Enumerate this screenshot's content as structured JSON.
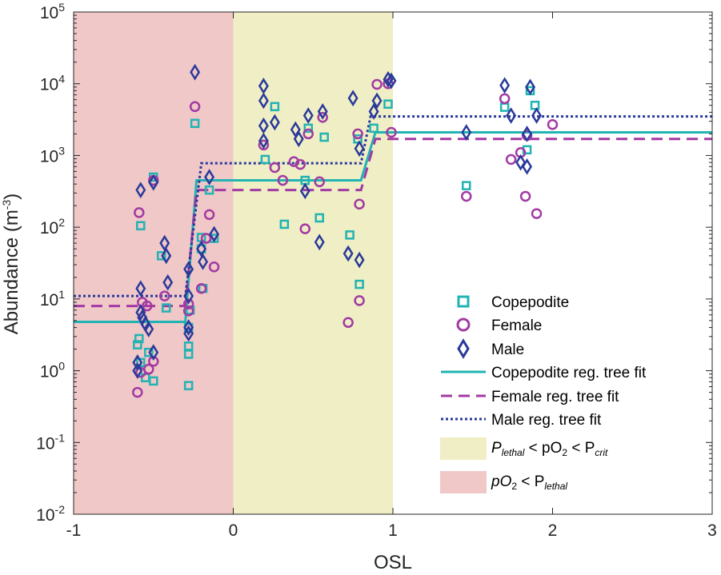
{
  "chart_data": {
    "type": "scatter",
    "title": "",
    "xlabel": "OSL",
    "ylabel": "Abundance (m",
    "ylabel_sup": "-3",
    "ylabel_close": ")",
    "xlim": [
      -1,
      3
    ],
    "ylim": [
      0.01,
      100000
    ],
    "yscale": "log",
    "x_ticks": [
      {
        "value": -1,
        "label": "-1"
      },
      {
        "value": 0,
        "label": "0"
      },
      {
        "value": 1,
        "label": "1"
      },
      {
        "value": 2,
        "label": "2"
      },
      {
        "value": 3,
        "label": "3"
      }
    ],
    "y_ticks": [
      {
        "value": 0.01,
        "base": "10",
        "exp": "-2"
      },
      {
        "value": 0.1,
        "base": "10",
        "exp": "-1"
      },
      {
        "value": 1,
        "base": "10",
        "exp": "0"
      },
      {
        "value": 10,
        "base": "10",
        "exp": "1"
      },
      {
        "value": 100,
        "base": "10",
        "exp": "2"
      },
      {
        "value": 1000,
        "base": "10",
        "exp": "3"
      },
      {
        "value": 10000,
        "base": "10",
        "exp": "4"
      },
      {
        "value": 100000,
        "base": "10",
        "exp": "5"
      }
    ],
    "regions": [
      {
        "name": "pO2 < Plethal",
        "x0": -1,
        "x1": 0,
        "color": "#f0c8c8"
      },
      {
        "name": "Plethal < pO2 < Pcrit",
        "x0": 0,
        "x1": 1,
        "color": "#efeec5"
      }
    ],
    "series": [
      {
        "name": "Copepodite",
        "marker": "square",
        "color": "#22b3b3",
        "points": [
          [
            -0.59,
            2.8
          ],
          [
            -0.6,
            2.3
          ],
          [
            -0.58,
            1.3
          ],
          [
            -0.55,
            0.8
          ],
          [
            -0.5,
            0.72
          ],
          [
            -0.53,
            1.8
          ],
          [
            -0.58,
            105
          ],
          [
            -0.5,
            500
          ],
          [
            -0.45,
            40
          ],
          [
            -0.42,
            7.5
          ],
          [
            -0.28,
            0.62
          ],
          [
            -0.28,
            1.7
          ],
          [
            -0.28,
            2.2
          ],
          [
            -0.28,
            4
          ],
          [
            -0.27,
            7
          ],
          [
            -0.24,
            2800
          ],
          [
            -0.2,
            72
          ],
          [
            -0.19,
            14
          ],
          [
            -0.12,
            70
          ],
          [
            -0.15,
            330
          ],
          [
            -0.2,
            50
          ],
          [
            0.2,
            880
          ],
          [
            0.26,
            4800
          ],
          [
            0.32,
            110
          ],
          [
            0.45,
            450
          ],
          [
            0.47,
            2400
          ],
          [
            0.54,
            135
          ],
          [
            0.57,
            1800
          ],
          [
            0.73,
            78
          ],
          [
            0.79,
            16
          ],
          [
            0.78,
            1700
          ],
          [
            0.88,
            2400
          ],
          [
            0.97,
            5200
          ],
          [
            1.46,
            380
          ],
          [
            1.7,
            4700
          ],
          [
            1.84,
            1200
          ],
          [
            1.86,
            8000
          ],
          [
            1.89,
            5000
          ]
        ]
      },
      {
        "name": "Female",
        "marker": "circle",
        "color": "#a23aa3",
        "points": [
          [
            -0.6,
            0.5
          ],
          [
            -0.58,
            0.95
          ],
          [
            -0.53,
            1.05
          ],
          [
            -0.5,
            1.35
          ],
          [
            -0.59,
            160
          ],
          [
            -0.57,
            9
          ],
          [
            -0.54,
            8
          ],
          [
            -0.5,
            450
          ],
          [
            -0.43,
            11
          ],
          [
            -0.28,
            6.8
          ],
          [
            -0.28,
            8.5
          ],
          [
            -0.24,
            4800
          ],
          [
            -0.2,
            14
          ],
          [
            -0.15,
            150
          ],
          [
            -0.12,
            28
          ],
          [
            -0.17,
            70
          ],
          [
            0.19,
            1400
          ],
          [
            0.26,
            680
          ],
          [
            0.31,
            450
          ],
          [
            0.38,
            820
          ],
          [
            0.42,
            750
          ],
          [
            0.47,
            2000
          ],
          [
            0.45,
            95
          ],
          [
            0.54,
            430
          ],
          [
            0.56,
            3400
          ],
          [
            0.72,
            4.7
          ],
          [
            0.79,
            9.5
          ],
          [
            0.79,
            210
          ],
          [
            0.78,
            2000
          ],
          [
            0.9,
            9800
          ],
          [
            0.97,
            10000
          ],
          [
            0.99,
            2100
          ],
          [
            1.46,
            270
          ],
          [
            1.7,
            6200
          ],
          [
            1.74,
            880
          ],
          [
            1.8,
            1100
          ],
          [
            1.83,
            270
          ],
          [
            1.84,
            1900
          ],
          [
            1.9,
            155
          ],
          [
            2.0,
            2700
          ]
        ]
      },
      {
        "name": "Male",
        "marker": "diamond",
        "color": "#2a3a9a",
        "points": [
          [
            -0.6,
            1.3
          ],
          [
            -0.6,
            1.0
          ],
          [
            -0.58,
            14
          ],
          [
            -0.58,
            6.5
          ],
          [
            -0.57,
            5.5
          ],
          [
            -0.55,
            4.5
          ],
          [
            -0.53,
            3.8
          ],
          [
            -0.5,
            1.8
          ],
          [
            -0.58,
            330
          ],
          [
            -0.5,
            420
          ],
          [
            -0.43,
            60
          ],
          [
            -0.42,
            40
          ],
          [
            -0.41,
            17
          ],
          [
            -0.28,
            26
          ],
          [
            -0.28,
            11
          ],
          [
            -0.28,
            4
          ],
          [
            -0.28,
            3.3
          ],
          [
            -0.24,
            14500
          ],
          [
            -0.2,
            50
          ],
          [
            -0.19,
            33
          ],
          [
            -0.15,
            500
          ],
          [
            -0.12,
            80
          ],
          [
            0.19,
            9300
          ],
          [
            0.19,
            5800
          ],
          [
            0.19,
            2600
          ],
          [
            0.19,
            1600
          ],
          [
            0.26,
            2900
          ],
          [
            0.39,
            2300
          ],
          [
            0.41,
            1700
          ],
          [
            0.45,
            320
          ],
          [
            0.47,
            3600
          ],
          [
            0.54,
            62
          ],
          [
            0.56,
            4100
          ],
          [
            0.72,
            43
          ],
          [
            0.75,
            6300
          ],
          [
            0.79,
            35
          ],
          [
            0.79,
            1250
          ],
          [
            0.88,
            4100
          ],
          [
            0.9,
            5800
          ],
          [
            0.97,
            11500
          ],
          [
            0.99,
            11000
          ],
          [
            1.46,
            2100
          ],
          [
            1.7,
            9500
          ],
          [
            1.74,
            3600
          ],
          [
            1.8,
            800
          ],
          [
            1.84,
            700
          ],
          [
            1.84,
            2000
          ],
          [
            1.86,
            9000
          ],
          [
            1.9,
            3600
          ]
        ]
      }
    ],
    "fits": [
      {
        "name": "Copepodite reg. tree fit",
        "style": "solid",
        "color": "#22b3b3",
        "points": [
          [
            -1,
            4.8
          ],
          [
            -0.3,
            4.8
          ],
          [
            -0.23,
            450
          ],
          [
            0.8,
            450
          ],
          [
            0.89,
            2100
          ],
          [
            3,
            2100
          ]
        ]
      },
      {
        "name": "Female reg. tree fit",
        "style": "dashed",
        "color": "#a23aa3",
        "points": [
          [
            -1,
            8
          ],
          [
            -0.3,
            8
          ],
          [
            -0.23,
            330
          ],
          [
            0.8,
            330
          ],
          [
            0.89,
            1700
          ],
          [
            3,
            1700
          ]
        ]
      },
      {
        "name": "Male reg. tree fit",
        "style": "dotted",
        "color": "#2a3a9a",
        "points": [
          [
            -1,
            11
          ],
          [
            -0.3,
            11
          ],
          [
            -0.2,
            780
          ],
          [
            0.8,
            780
          ],
          [
            0.86,
            3500
          ],
          [
            3,
            3500
          ]
        ]
      }
    ],
    "legend": {
      "placement": "bottom-right",
      "copepodite": "Copepodite",
      "female": "Female",
      "male": "Male",
      "cop_fit": "Copepodite reg. tree fit",
      "fem_fit": "Female reg. tree fit",
      "male_fit": "Male reg. tree fit",
      "yellow_p1": "P",
      "yellow_s1": "lethal",
      "yellow_mid": " < pO",
      "yellow_sub2": "2",
      "yellow_p2": " < P",
      "yellow_s2": "crit",
      "red_p1": "pO",
      "red_sub2": "2",
      "red_p2": " < P",
      "red_s2": "lethal"
    }
  }
}
